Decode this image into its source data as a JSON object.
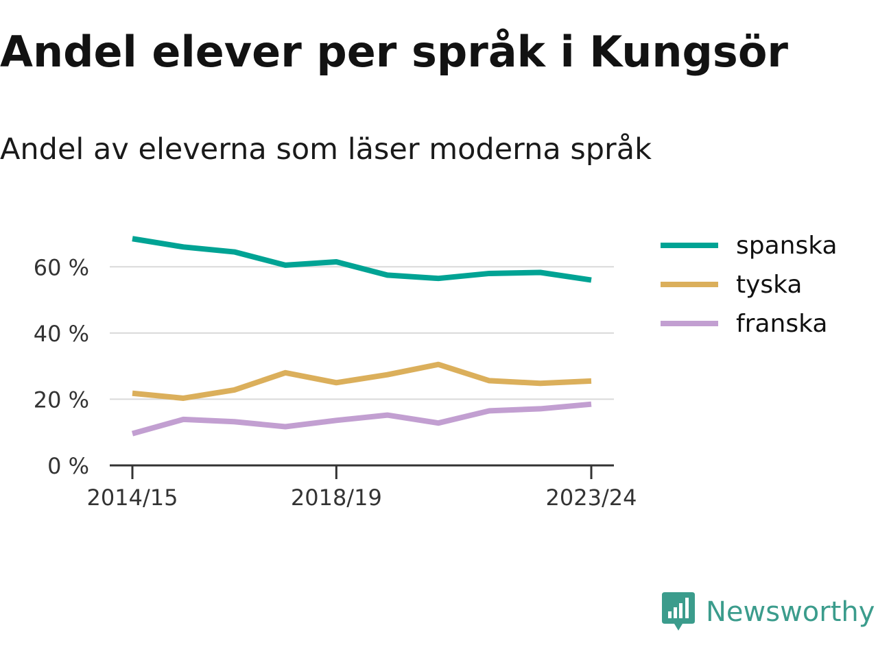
{
  "header": {
    "title": "Andel elever per språk i Kungsör",
    "subtitle": "Andel av eleverna som läser moderna språk"
  },
  "chart_data": {
    "type": "line",
    "x": [
      "2014/15",
      "2015/16",
      "2016/17",
      "2017/18",
      "2018/19",
      "2019/20",
      "2020/21",
      "2021/22",
      "2022/23",
      "2023/24"
    ],
    "x_tick_labels": [
      "2014/15",
      "2018/19",
      "2023/24"
    ],
    "y_tick_labels": [
      "0 %",
      "20 %",
      "40 %",
      "60 %"
    ],
    "y_ticks": [
      0,
      20,
      40,
      60
    ],
    "ylim": [
      0,
      70
    ],
    "grid": true,
    "legend_position": "right",
    "series": [
      {
        "name": "spanska",
        "color": "#00a394",
        "values": [
          68.5,
          66.0,
          64.5,
          60.5,
          61.5,
          57.5,
          56.5,
          58.0,
          58.3,
          56.0
        ]
      },
      {
        "name": "tyska",
        "color": "#dbaf5b",
        "values": [
          21.8,
          20.3,
          22.8,
          28.0,
          25.0,
          27.4,
          30.5,
          25.6,
          24.8,
          25.5
        ]
      },
      {
        "name": "franska",
        "color": "#c29fd1",
        "values": [
          9.6,
          13.9,
          13.2,
          11.7,
          13.6,
          15.2,
          12.8,
          16.5,
          17.1,
          18.5
        ]
      }
    ]
  },
  "brand": {
    "name": "Newsworthy",
    "color": "#3b9c8c"
  }
}
